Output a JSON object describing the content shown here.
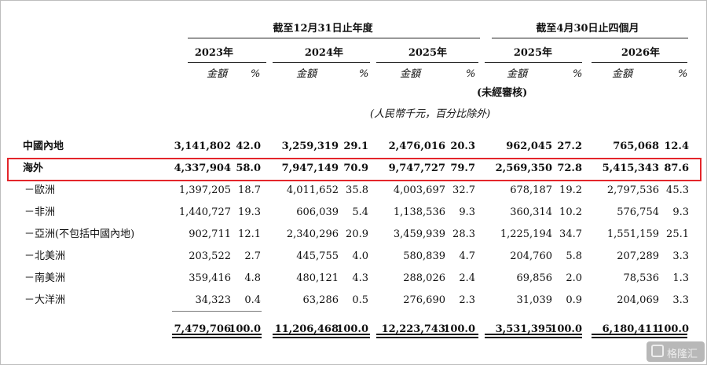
{
  "header": {
    "fy_caption": "截至12月31日止年度",
    "m4_caption": "截至4月30日止四個月",
    "years": [
      "2023年",
      "2024年",
      "2025年",
      "2025年",
      "2026年"
    ],
    "amount_label": "金額",
    "pct_label": "%",
    "unaudited": "(未經審核)",
    "unit_note": "(人民幣千元，百分比除外)"
  },
  "rows": [
    {
      "label": "中國內地",
      "values": [
        "3,141,802",
        "42.0",
        "3,259,319",
        "29.1",
        "2,476,016",
        "20.3",
        "962,045",
        "27.2",
        "765,068",
        "12.4"
      ]
    },
    {
      "label": "海外",
      "values": [
        "4,337,904",
        "58.0",
        "7,947,149",
        "70.9",
        "9,747,727",
        "79.7",
        "2,569,350",
        "72.8",
        "5,415,343",
        "87.6"
      ]
    },
    {
      "label": "－歐洲",
      "values": [
        "1,397,205",
        "18.7",
        "4,011,652",
        "35.8",
        "4,003,697",
        "32.7",
        "678,187",
        "19.2",
        "2,797,536",
        "45.3"
      ]
    },
    {
      "label": "－非洲",
      "values": [
        "1,440,727",
        "19.3",
        "606,039",
        "5.4",
        "1,138,536",
        "9.3",
        "360,314",
        "10.2",
        "576,754",
        "9.3"
      ]
    },
    {
      "label": "－亞洲(不包括中國內地)",
      "values": [
        "902,711",
        "12.1",
        "2,340,296",
        "20.9",
        "3,459,939",
        "28.3",
        "1,225,194",
        "34.7",
        "1,551,159",
        "25.1"
      ]
    },
    {
      "label": "－北美洲",
      "values": [
        "203,522",
        "2.7",
        "445,755",
        "4.0",
        "580,839",
        "4.7",
        "204,760",
        "5.8",
        "207,289",
        "3.3"
      ]
    },
    {
      "label": "－南美洲",
      "values": [
        "359,416",
        "4.8",
        "480,121",
        "4.3",
        "288,026",
        "2.4",
        "69,856",
        "2.0",
        "78,536",
        "1.3"
      ]
    },
    {
      "label": "－大洋洲",
      "values": [
        "34,323",
        "0.4",
        "63,286",
        "0.5",
        "276,690",
        "2.3",
        "31,039",
        "0.9",
        "204,069",
        "3.3"
      ]
    }
  ],
  "total": {
    "values": [
      "7,479,706",
      "100.0",
      "11,206,468",
      "100.0",
      "12,223,743",
      "100.0",
      "3,531,395",
      "100.0",
      "6,180,411",
      "100.0"
    ]
  },
  "watermark": "格隆汇",
  "colors": {
    "highlight_border": "#e3262b",
    "text": "#111111"
  }
}
